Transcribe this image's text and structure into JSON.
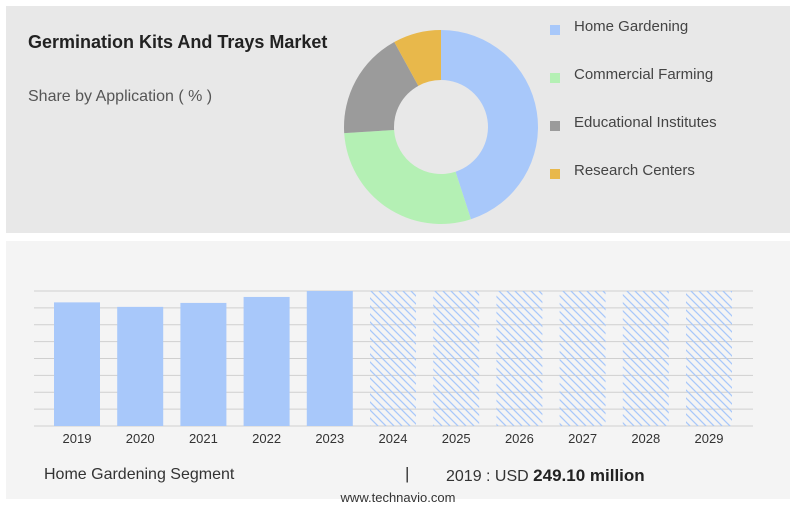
{
  "header": {
    "title": "Germination Kits And Trays Market",
    "subtitle": "Share by Application ( % )"
  },
  "chart_data": [
    {
      "type": "pie",
      "donut": true,
      "categories": [
        "Home Gardening",
        "Commercial Farming",
        "Educational Institutes",
        "Research Centers"
      ],
      "values": [
        45,
        29,
        18,
        8
      ],
      "colors": [
        "#a8c8fa",
        "#b4f0b4",
        "#9b9b9b",
        "#e8b84b"
      ],
      "legend_position": "right"
    },
    {
      "type": "bar",
      "categories": [
        "2019",
        "2020",
        "2021",
        "2022",
        "2023",
        "2024",
        "2025",
        "2026",
        "2027",
        "2028",
        "2029"
      ],
      "values": [
        249.1,
        240,
        248,
        260,
        272,
        272,
        272,
        272,
        272,
        272,
        272
      ],
      "forecast_from": "2024",
      "color": "#a8c8fa",
      "grid": true,
      "ylim": [
        0,
        272
      ]
    }
  ],
  "footer": {
    "segment": "Home Gardening Segment",
    "separator": "|",
    "value_prefix": "2019 : USD",
    "value_bold": "249.10 million"
  },
  "watermark": "www.technavio.com"
}
